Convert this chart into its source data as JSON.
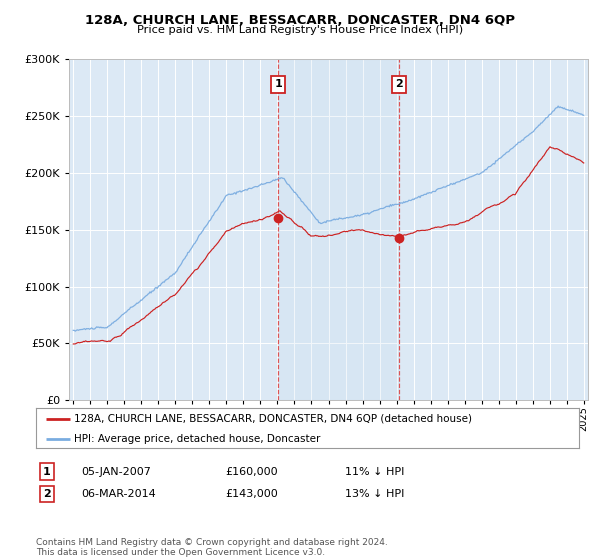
{
  "title": "128A, CHURCH LANE, BESSACARR, DONCASTER, DN4 6QP",
  "subtitle": "Price paid vs. HM Land Registry's House Price Index (HPI)",
  "background_color": "#ffffff",
  "plot_bg_color": "#dce9f5",
  "grid_color": "#ffffff",
  "hpi_color": "#7aace0",
  "price_color": "#cc2222",
  "marker_color": "#cc2222",
  "sale1_date_label": "05-JAN-2007",
  "sale1_price": 160000,
  "sale1_hpi_diff": "11% ↓ HPI",
  "sale2_date_label": "06-MAR-2014",
  "sale2_price": 143000,
  "sale2_hpi_diff": "13% ↓ HPI",
  "legend_label1": "128A, CHURCH LANE, BESSACARR, DONCASTER, DN4 6QP (detached house)",
  "legend_label2": "HPI: Average price, detached house, Doncaster",
  "footnote": "Contains HM Land Registry data © Crown copyright and database right 2024.\nThis data is licensed under the Open Government Licence v3.0.",
  "ylim": [
    0,
    300000
  ],
  "yticks": [
    0,
    50000,
    100000,
    150000,
    200000,
    250000,
    300000
  ],
  "sale1_year": 2007.04,
  "sale2_year": 2014.17,
  "xmin": 1994.75,
  "xmax": 2025.25
}
